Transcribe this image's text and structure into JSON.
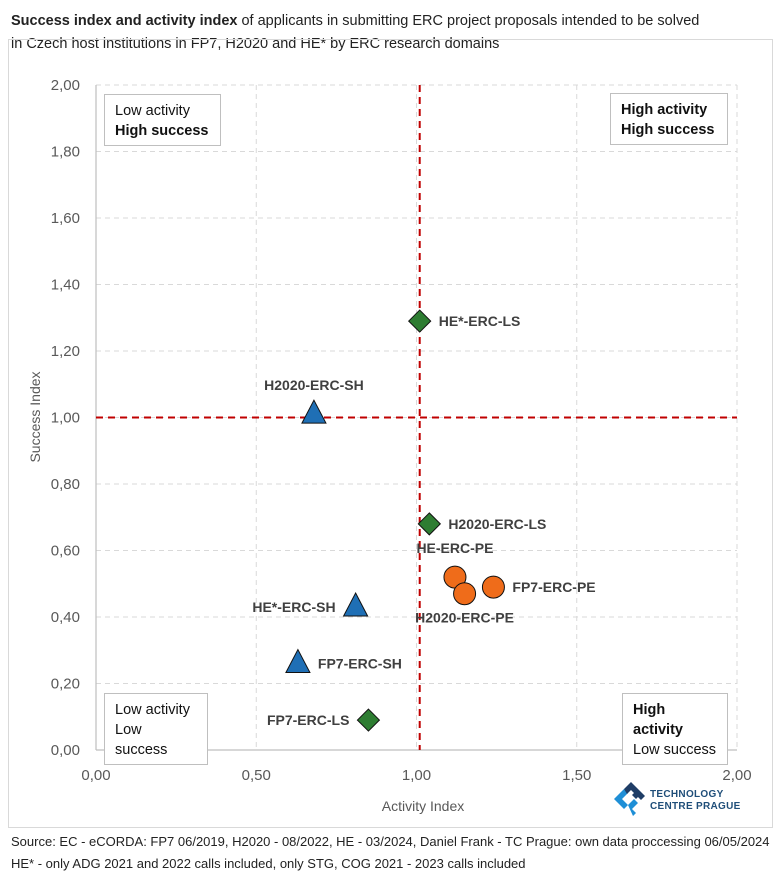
{
  "title": {
    "bold": "Success index and activity index",
    "rest_line1": " of applicants in submitting ERC project proposals intended to be solved",
    "line2": "in Czech host institutions in FP7, H2020 and HE* by ERC research domains"
  },
  "quadrants": {
    "top_left": {
      "line1": "Low activity",
      "line2": "High success"
    },
    "top_right": {
      "line1": "High activity",
      "line2": "High success"
    },
    "bottom_left": {
      "line1": "Low activity",
      "line2": "Low success"
    },
    "bottom_right": {
      "line1": "High activity",
      "line2": "Low success"
    }
  },
  "logo": {
    "line1": "TECHNOLOGY",
    "line2": "CENTRE PRAGUE"
  },
  "footer": {
    "line1": "Source: EC - eCORDA: FP7 06/2019, H2020 - 08/2022, HE - 03/2024, Daniel Frank - TC Prague: own data proccessing 06/05/2024",
    "line2": "HE* - only ADG 2021 and 2022 calls included, only STG, COG 2021 - 2023 calls included"
  },
  "colors": {
    "LS": "#2e7d32",
    "SH": "#1f6fb5",
    "PE": "#ef6c1a",
    "reference_line": "#c00000",
    "grid": "#d9d9d9"
  },
  "chart_data": {
    "type": "scatter",
    "title": "Success index and activity index of applicants in submitting ERC project proposals intended to be solved in Czech host institutions in FP7, H2020 and HE* by ERC research domains",
    "xlabel": "Activity Index",
    "ylabel": "Success Index",
    "xlim": [
      0,
      2
    ],
    "ylim": [
      0,
      2
    ],
    "xticks": [
      0,
      0.5,
      1.0,
      1.5,
      2.0
    ],
    "xtick_labels": [
      "0,00",
      "0,50",
      "1,00",
      "1,50",
      "2,00"
    ],
    "yticks": [
      0,
      0.2,
      0.4,
      0.6,
      0.8,
      1.0,
      1.2,
      1.4,
      1.6,
      1.8,
      2.0
    ],
    "ytick_labels": [
      "0,00",
      "0,20",
      "0,40",
      "0,60",
      "0,80",
      "1,00",
      "1,20",
      "1,40",
      "1,60",
      "1,80",
      "2,00"
    ],
    "grid": true,
    "reference_lines": {
      "x": 1.01,
      "y": 1.0
    },
    "series": [
      {
        "name": "LS",
        "marker": "diamond",
        "points": [
          {
            "label": "HE*-ERC-LS",
            "x": 1.01,
            "y": 1.29,
            "label_pos": "right"
          },
          {
            "label": "H2020-ERC-LS",
            "x": 1.04,
            "y": 0.68,
            "label_pos": "right"
          },
          {
            "label": "FP7-ERC-LS",
            "x": 0.85,
            "y": 0.09,
            "label_pos": "left"
          }
        ]
      },
      {
        "name": "SH",
        "marker": "triangle",
        "points": [
          {
            "label": "H2020-ERC-SH",
            "x": 0.68,
            "y": 1.01,
            "label_pos": "top"
          },
          {
            "label": "HE*-ERC-SH",
            "x": 0.81,
            "y": 0.43,
            "label_pos": "left"
          },
          {
            "label": "FP7-ERC-SH",
            "x": 0.63,
            "y": 0.26,
            "label_pos": "right"
          }
        ]
      },
      {
        "name": "PE",
        "marker": "circle",
        "points": [
          {
            "label": "HE-ERC-PE",
            "x": 1.12,
            "y": 0.52,
            "label_pos": "top"
          },
          {
            "label": "H2020-ERC-PE",
            "x": 1.15,
            "y": 0.47,
            "label_pos": "bottom"
          },
          {
            "label": "FP7-ERC-PE",
            "x": 1.24,
            "y": 0.49,
            "label_pos": "right"
          }
        ]
      }
    ]
  }
}
